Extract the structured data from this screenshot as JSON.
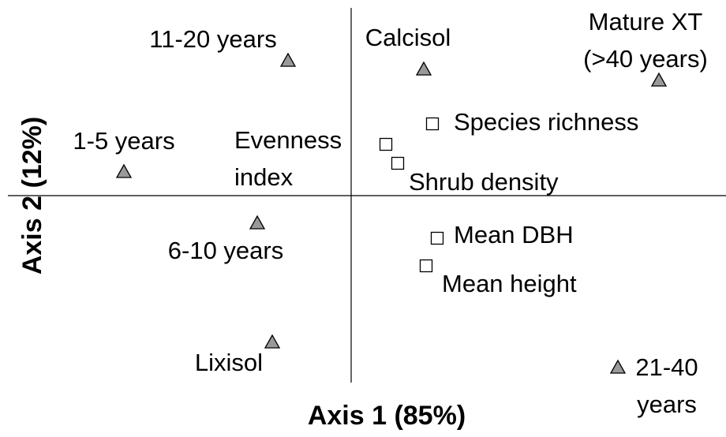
{
  "chart_data": {
    "type": "scatter",
    "xlabel": "Axis 1 (85%)",
    "ylabel": "Axis 2 (12%)",
    "xlim": [
      -4.35,
      4.75
    ],
    "ylim": [
      -2.37,
      2.38
    ],
    "series": [
      {
        "marker": "triangle",
        "color": "#999999",
        "labels": [
          [
            "11-20 years"
          ],
          [
            "Calcisol"
          ],
          [
            "Mature XT",
            "(>40 years)"
          ],
          [
            "1-5 years"
          ],
          [
            "6-10 years"
          ],
          [
            "Lixisol"
          ],
          [
            "21-40",
            "years"
          ]
        ],
        "x": [
          -0.8,
          0.92,
          3.9,
          -2.88,
          -1.19,
          -1.0,
          3.38
        ],
        "y": [
          1.71,
          1.6,
          1.46,
          0.3,
          -0.35,
          -1.86,
          -2.18
        ]
      },
      {
        "marker": "square",
        "color": "#ffffff",
        "labels": [
          [
            "Species richness"
          ],
          [
            "Evenness",
            "index"
          ],
          [
            "Shrub density"
          ],
          [
            "Mean DBH"
          ],
          [
            "Mean height"
          ]
        ],
        "x": [
          1.03,
          0.44,
          0.59,
          1.09,
          0.95
        ],
        "y": [
          0.91,
          0.65,
          0.41,
          -0.54,
          -0.89
        ]
      }
    ]
  }
}
